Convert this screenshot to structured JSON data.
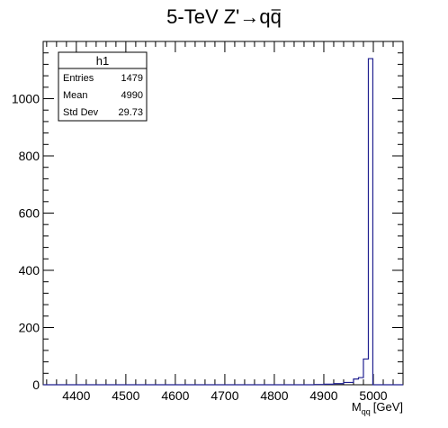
{
  "chart_data": {
    "type": "histogram",
    "title": {
      "prefix": "5-TeV Z'",
      "arrow": "→",
      "product": "qq"
    },
    "xlabel": {
      "main": "M",
      "sub": "qq",
      "unit": "[GeV]"
    },
    "ylabel": "",
    "xlim": [
      4333,
      5060
    ],
    "ylim": [
      0,
      1200
    ],
    "x_ticks": [
      4400,
      4500,
      4600,
      4700,
      4800,
      4900,
      5000
    ],
    "x_tick_labels": [
      "4400",
      "4500",
      "4600",
      "4700",
      "4800",
      "4900",
      "5000"
    ],
    "y_ticks": [
      0,
      200,
      400,
      600,
      800,
      1000
    ],
    "y_tick_labels": [
      "0",
      "200",
      "400",
      "600",
      "800",
      "1000"
    ],
    "line_color": "#1f1f8f",
    "grid": false,
    "bins": [
      {
        "x0": 4333,
        "x1": 4880,
        "y": 0
      },
      {
        "x0": 4880,
        "x1": 4900,
        "y": 1
      },
      {
        "x0": 4900,
        "x1": 4920,
        "y": 2
      },
      {
        "x0": 4920,
        "x1": 4940,
        "y": 4
      },
      {
        "x0": 4940,
        "x1": 4960,
        "y": 8
      },
      {
        "x0": 4960,
        "x1": 4970,
        "y": 20
      },
      {
        "x0": 4970,
        "x1": 4980,
        "y": 25
      },
      {
        "x0": 4980,
        "x1": 4990,
        "y": 90
      },
      {
        "x0": 4990,
        "x1": 4999,
        "y": 1140
      },
      {
        "x0": 4999,
        "x1": 5060,
        "y": 0
      }
    ],
    "stats_box": {
      "name": "h1",
      "rows": [
        {
          "label": "Entries",
          "value": "1479"
        },
        {
          "label": "Mean",
          "value": "4990"
        },
        {
          "label": "Std Dev",
          "value": "29.73"
        }
      ]
    }
  }
}
